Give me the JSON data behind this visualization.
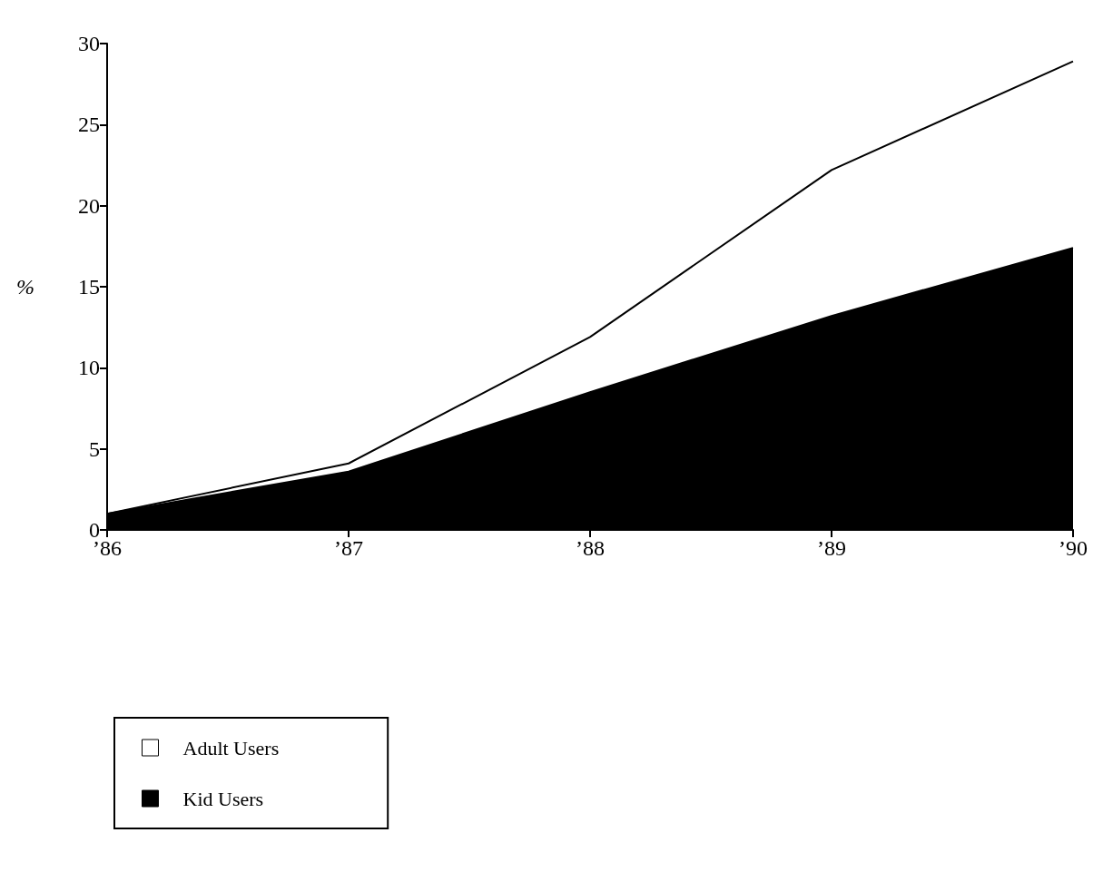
{
  "chart_data": {
    "type": "area",
    "ylabel": "%",
    "categories": [
      "’86",
      "’87",
      "’88",
      "’89",
      "’90"
    ],
    "series": [
      {
        "name": "Adult Users",
        "color": "#ffffff",
        "values": [
          1.0,
          4.1,
          11.9,
          22.2,
          28.9
        ]
      },
      {
        "name": "Kid Users",
        "color": "#000000",
        "values": [
          1.0,
          3.6,
          8.5,
          13.2,
          17.4
        ]
      }
    ],
    "ylim": [
      0,
      30
    ],
    "yticks": [
      0,
      5,
      10,
      15,
      20,
      25,
      30
    ],
    "grid": false,
    "legend": "bottom left",
    "marker": "none",
    "line_style": "solid"
  }
}
